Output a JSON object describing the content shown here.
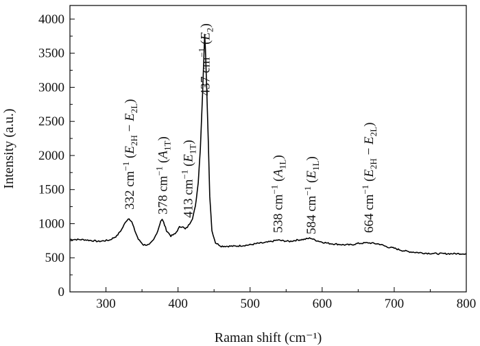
{
  "chart_data": {
    "type": "line",
    "title": "",
    "xlabel": "Raman shift (cm⁻¹)",
    "ylabel": "Intensity (a.u.)",
    "xlim": [
      250,
      800
    ],
    "ylim": [
      0,
      4200
    ],
    "x_ticks": [
      300,
      400,
      500,
      600,
      700,
      800
    ],
    "y_ticks": [
      0,
      500,
      1000,
      1500,
      2000,
      2500,
      3000,
      3500,
      4000
    ],
    "grid": false,
    "legend": "none",
    "line_color": "#000000",
    "series": [
      {
        "x": [
          250,
          270,
          290,
          305,
          315,
          322,
          328,
          332,
          336,
          340,
          345,
          352,
          360,
          366,
          372,
          376,
          378,
          380,
          384,
          390,
          396,
          402,
          406,
          410,
          413,
          416,
          420,
          424,
          428,
          431,
          434,
          436,
          437,
          438,
          440,
          442,
          444,
          447,
          452,
          460,
          470,
          480,
          490,
          500,
          510,
          520,
          530,
          538,
          545,
          555,
          565,
          575,
          584,
          590,
          600,
          610,
          620,
          630,
          640,
          650,
          664,
          672,
          680,
          690,
          700,
          710,
          720,
          740,
          760,
          780,
          800
        ],
        "y": [
          770,
          765,
          740,
          760,
          820,
          920,
          1040,
          1080,
          1020,
          900,
          770,
          690,
          690,
          760,
          900,
          1040,
          1060,
          1020,
          900,
          820,
          850,
          950,
          960,
          920,
          950,
          1000,
          1080,
          1250,
          1600,
          2100,
          2900,
          3500,
          3780,
          3550,
          2900,
          2200,
          1400,
          900,
          720,
          670,
          670,
          670,
          680,
          690,
          710,
          720,
          740,
          760,
          750,
          740,
          760,
          770,
          790,
          760,
          730,
          710,
          700,
          690,
          690,
          710,
          720,
          710,
          700,
          660,
          640,
          610,
          590,
          570,
          560,
          560,
          560
        ]
      }
    ],
    "annotations": [
      {
        "x": 332,
        "value": "332 cm",
        "mode": "E",
        "mode_sub": "2H",
        "minus": " − ",
        "mode2": "E",
        "mode2_sub": "2L"
      },
      {
        "x": 378,
        "value": "378 cm",
        "mode": "A",
        "mode_sub": "1T"
      },
      {
        "x": 413,
        "value": "413 cm",
        "mode": "E",
        "mode_sub": "1T"
      },
      {
        "x": 437,
        "value": "437 cm",
        "mode": "E",
        "mode_sub": "2"
      },
      {
        "x": 538,
        "value": "538 cm",
        "mode": "A",
        "mode_sub": "1L"
      },
      {
        "x": 584,
        "value": "584 cm",
        "mode": "E",
        "mode_sub": "1L"
      },
      {
        "x": 664,
        "value": "664 cm",
        "mode": "E",
        "mode_sub": "2H",
        "minus": " − ",
        "mode2": "E",
        "mode2_sub": "2L"
      }
    ],
    "exponent": "−1"
  }
}
